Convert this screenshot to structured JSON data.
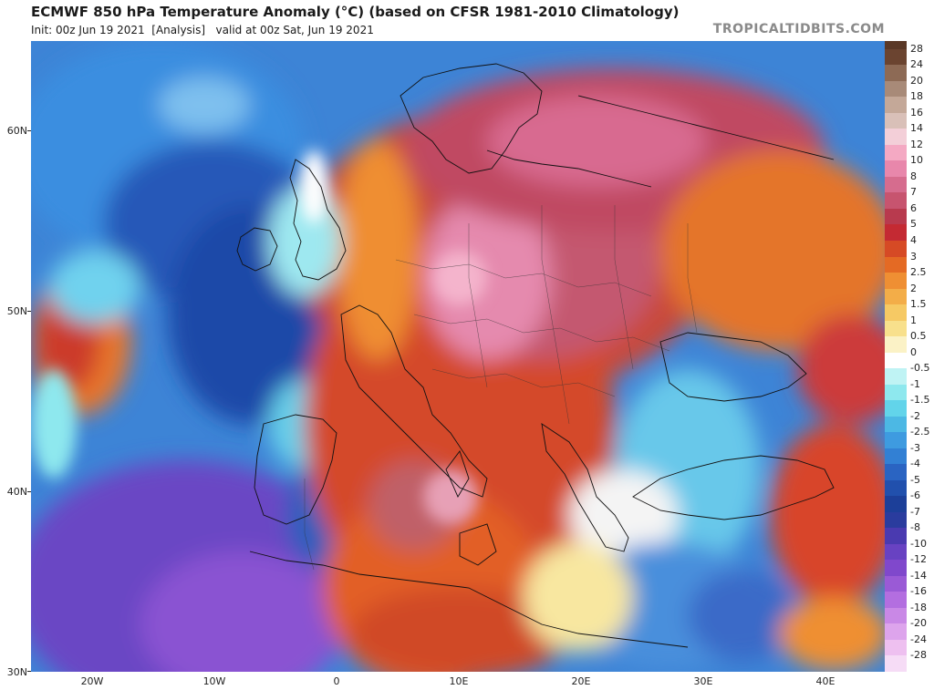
{
  "header": {
    "title": "ECMWF 850 hPa Temperature Anomaly (°C) (based on CFSR 1981-2010 Climatology)",
    "init": "Init: 00z Jun 19 2021",
    "analysis": "[Analysis]",
    "valid": "valid at 00z Sat, Jun 19 2021",
    "brand": "TROPICALTIDBITS.COM"
  },
  "map": {
    "lat_labels": [
      "60N",
      "50N",
      "40N",
      "30N"
    ],
    "lon_labels": [
      "20W",
      "10W",
      "0",
      "10E",
      "20E",
      "30E",
      "40E"
    ]
  },
  "colorbar": {
    "levels": [
      "28",
      "24",
      "20",
      "18",
      "16",
      "14",
      "12",
      "10",
      "8",
      "7",
      "6",
      "5",
      "4",
      "3",
      "2.5",
      "2",
      "1.5",
      "1",
      "0.5",
      "0",
      "-0.5",
      "-1",
      "-1.5",
      "-2",
      "-2.5",
      "-3",
      "-4",
      "-5",
      "-6",
      "-7",
      "-8",
      "-10",
      "-12",
      "-14",
      "-16",
      "-18",
      "-20",
      "-24",
      "-28"
    ],
    "colors": [
      "#6b4430",
      "#8d6a55",
      "#a88a78",
      "#c4a898",
      "#d9c0b8",
      "#f3cfd8",
      "#f4a9c3",
      "#e887ab",
      "#d66c8e",
      "#c7546f",
      "#b83a4e",
      "#c42a33",
      "#d64a25",
      "#e46a24",
      "#ef8f33",
      "#f3ad48",
      "#f6c964",
      "#f8e08c",
      "#fbf2c6",
      "#ffffff",
      "#bff3f4",
      "#8ee8ee",
      "#62d4ea",
      "#4cb8e4",
      "#3e9be0",
      "#3280d4",
      "#2a64c2",
      "#2150ad",
      "#1c3f99",
      "#2a3c9e",
      "#4a3ab0",
      "#6842c2",
      "#8048cc",
      "#9a5ad6",
      "#b36ee0",
      "#c988e6",
      "#dda4ec",
      "#eec0f0",
      "#f6dcf6"
    ]
  }
}
